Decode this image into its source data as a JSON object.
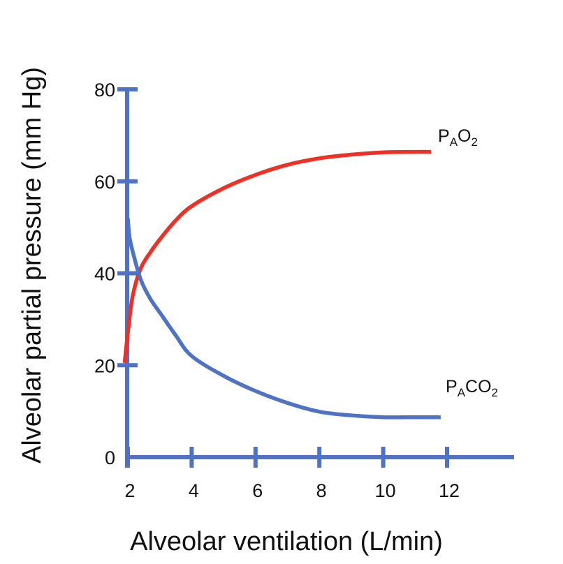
{
  "chart_data": {
    "type": "line",
    "title": "",
    "xlabel": "Alveolar ventilation (L/min)",
    "ylabel": "Alveolar partial pressure (mm Hg)",
    "xlim": [
      1.9,
      14.1
    ],
    "ylim": [
      0,
      80
    ],
    "x_ticks": [
      "2",
      "4",
      "6",
      "8",
      "10",
      "12"
    ],
    "y_ticks": [
      "0",
      "20",
      "40",
      "60",
      "80"
    ],
    "grid": false,
    "axis_color": "#4F72C4",
    "series": [
      {
        "name": "PAO2",
        "label": {
          "main": "P",
          "sub1": "A",
          "mid": "O",
          "sub2": "2"
        },
        "color": "#EE3124",
        "x": [
          1.9,
          2.0,
          2.15,
          2.4,
          2.7,
          3.05,
          3.5,
          4,
          5,
          6,
          7,
          8,
          9,
          10,
          11,
          11.5
        ],
        "y": [
          20.5,
          27,
          35,
          41,
          44.5,
          47.8,
          51.5,
          54.6,
          58.5,
          61.4,
          63.6,
          65,
          65.8,
          66.3,
          66.4,
          66.4
        ]
      },
      {
        "name": "PACO2",
        "label": {
          "main": "P",
          "sub1": "A",
          "mid": "CO",
          "sub2": "2"
        },
        "color": "#4F72C4",
        "x": [
          2.0,
          2.05,
          2.15,
          2.4,
          2.7,
          3.05,
          3.5,
          4,
          5,
          6,
          7,
          8,
          9,
          10,
          11,
          11.8
        ],
        "y": [
          52,
          48,
          44.8,
          38.7,
          34.5,
          31,
          26.5,
          22,
          17.7,
          14.4,
          11.8,
          9.9,
          9.1,
          8.7,
          8.7,
          8.7
        ]
      }
    ]
  }
}
